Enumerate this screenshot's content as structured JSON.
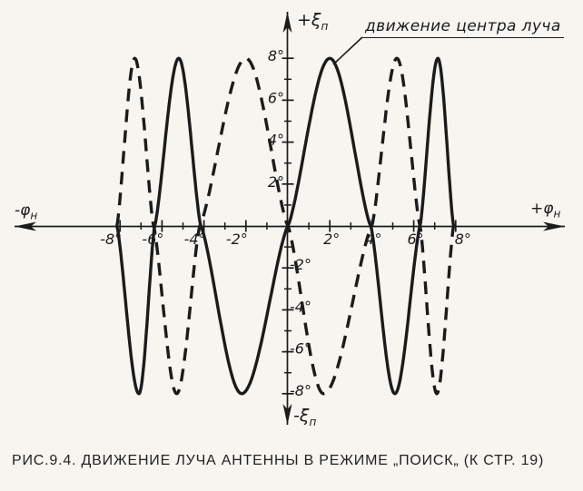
{
  "figure": {
    "caption": "РИС.9.4. ДВИЖЕНИЕ ЛУЧА АНТЕННЫ В РЕЖИМЕ „ПОИСК„ (К СТР. 19)"
  },
  "annotation": {
    "text": "движение центра луча"
  },
  "axes": {
    "y_top": {
      "main": "+ξ",
      "sub": "п"
    },
    "y_bottom": {
      "main": "-ξ",
      "sub": "п"
    },
    "x_left": {
      "main": "-φ",
      "sub": "н"
    },
    "x_right": {
      "main": "+φ",
      "sub": "н"
    }
  },
  "colors": {
    "ink": "#1b1b1b",
    "paper": "#f7f5f0"
  },
  "chart_data": {
    "type": "line",
    "title": "Движение луча антенны в режиме „Поиск„",
    "xlabel": "φн, град",
    "ylabel": "ξп, град",
    "xlim": [
      -9.5,
      9.8
    ],
    "ylim": [
      -8,
      8
    ],
    "amplitude_deg": 8,
    "grid": false,
    "legend_position": "none",
    "series": [
      {
        "id": "solid",
        "style": "solid",
        "annotation": "движение центра луча",
        "nodes": [
          [
            -8.15,
            0
          ],
          [
            -7.1,
            -8
          ],
          [
            -6.35,
            0
          ],
          [
            -5.2,
            8
          ],
          [
            -4.15,
            0
          ],
          [
            -2.2,
            -8
          ],
          [
            0,
            0
          ],
          [
            2.0,
            8
          ],
          [
            3.95,
            0
          ],
          [
            5.1,
            -8
          ],
          [
            6.3,
            0
          ],
          [
            7.15,
            8
          ],
          [
            7.9,
            0
          ]
        ]
      },
      {
        "id": "dashed",
        "style": "dashed",
        "annotation": "",
        "nodes": [
          [
            -8.15,
            0
          ],
          [
            -7.3,
            8
          ],
          [
            -6.4,
            0
          ],
          [
            -5.3,
            -8
          ],
          [
            -4.2,
            0
          ],
          [
            -2.0,
            8
          ],
          [
            0,
            0
          ],
          [
            1.7,
            -8
          ],
          [
            4.0,
            0
          ],
          [
            5.2,
            8
          ],
          [
            6.3,
            0
          ],
          [
            7.1,
            -8
          ],
          [
            7.9,
            0
          ]
        ]
      }
    ],
    "x_ticks": [
      {
        "deg": -8,
        "label": "-8°"
      },
      {
        "deg": -6,
        "label": "-6°"
      },
      {
        "deg": -4,
        "label": "-4°"
      },
      {
        "deg": -2,
        "label": "-2°"
      },
      {
        "deg": 2,
        "label": "2°"
      },
      {
        "deg": 4,
        "label": "4°"
      },
      {
        "deg": 6,
        "label": "6°"
      },
      {
        "deg": 8,
        "label": "8°"
      }
    ],
    "y_ticks": [
      {
        "deg": 8,
        "label": "8°"
      },
      {
        "deg": 6,
        "label": "6°"
      },
      {
        "deg": 4,
        "label": "4°"
      },
      {
        "deg": 2,
        "label": "2°"
      },
      {
        "deg": -2,
        "label": "-2°"
      },
      {
        "deg": -4,
        "label": "-4°"
      },
      {
        "deg": -6,
        "label": "-6°"
      },
      {
        "deg": -8,
        "label": "-8°"
      }
    ],
    "minor_tick_degs": [
      -7,
      -5,
      -3,
      -1,
      1,
      3,
      5,
      7
    ]
  }
}
